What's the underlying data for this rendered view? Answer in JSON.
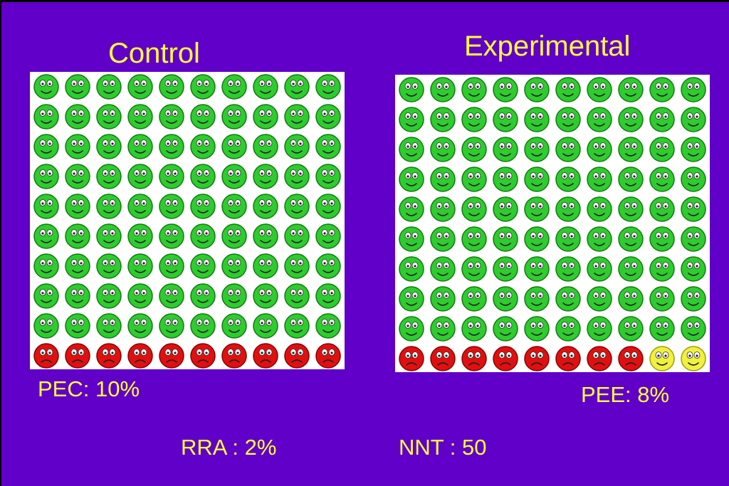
{
  "control": {
    "title": "Control",
    "stat_label": "PEC: 10%",
    "faces": {
      "rows": 10,
      "cols": 10,
      "green_count": 90,
      "red_count": 10,
      "yellow_count": 0
    }
  },
  "experimental": {
    "title": "Experimental",
    "stat_label": "PEE: 8%",
    "faces": {
      "rows": 10,
      "cols": 10,
      "green_count": 90,
      "red_count": 8,
      "yellow_count": 2
    }
  },
  "summary": {
    "rra": "RRA : 2%",
    "nnt": "NNT : 50"
  },
  "colors": {
    "background": "#6000c8",
    "text": "#ffff40",
    "healthy": "#2ecc2e",
    "event": "#e01010",
    "prevented": "#f0f040"
  },
  "icons": {
    "healthy": "smiley-face-green-icon",
    "event": "frowning-face-red-icon",
    "prevented": "smiley-face-yellow-icon"
  }
}
